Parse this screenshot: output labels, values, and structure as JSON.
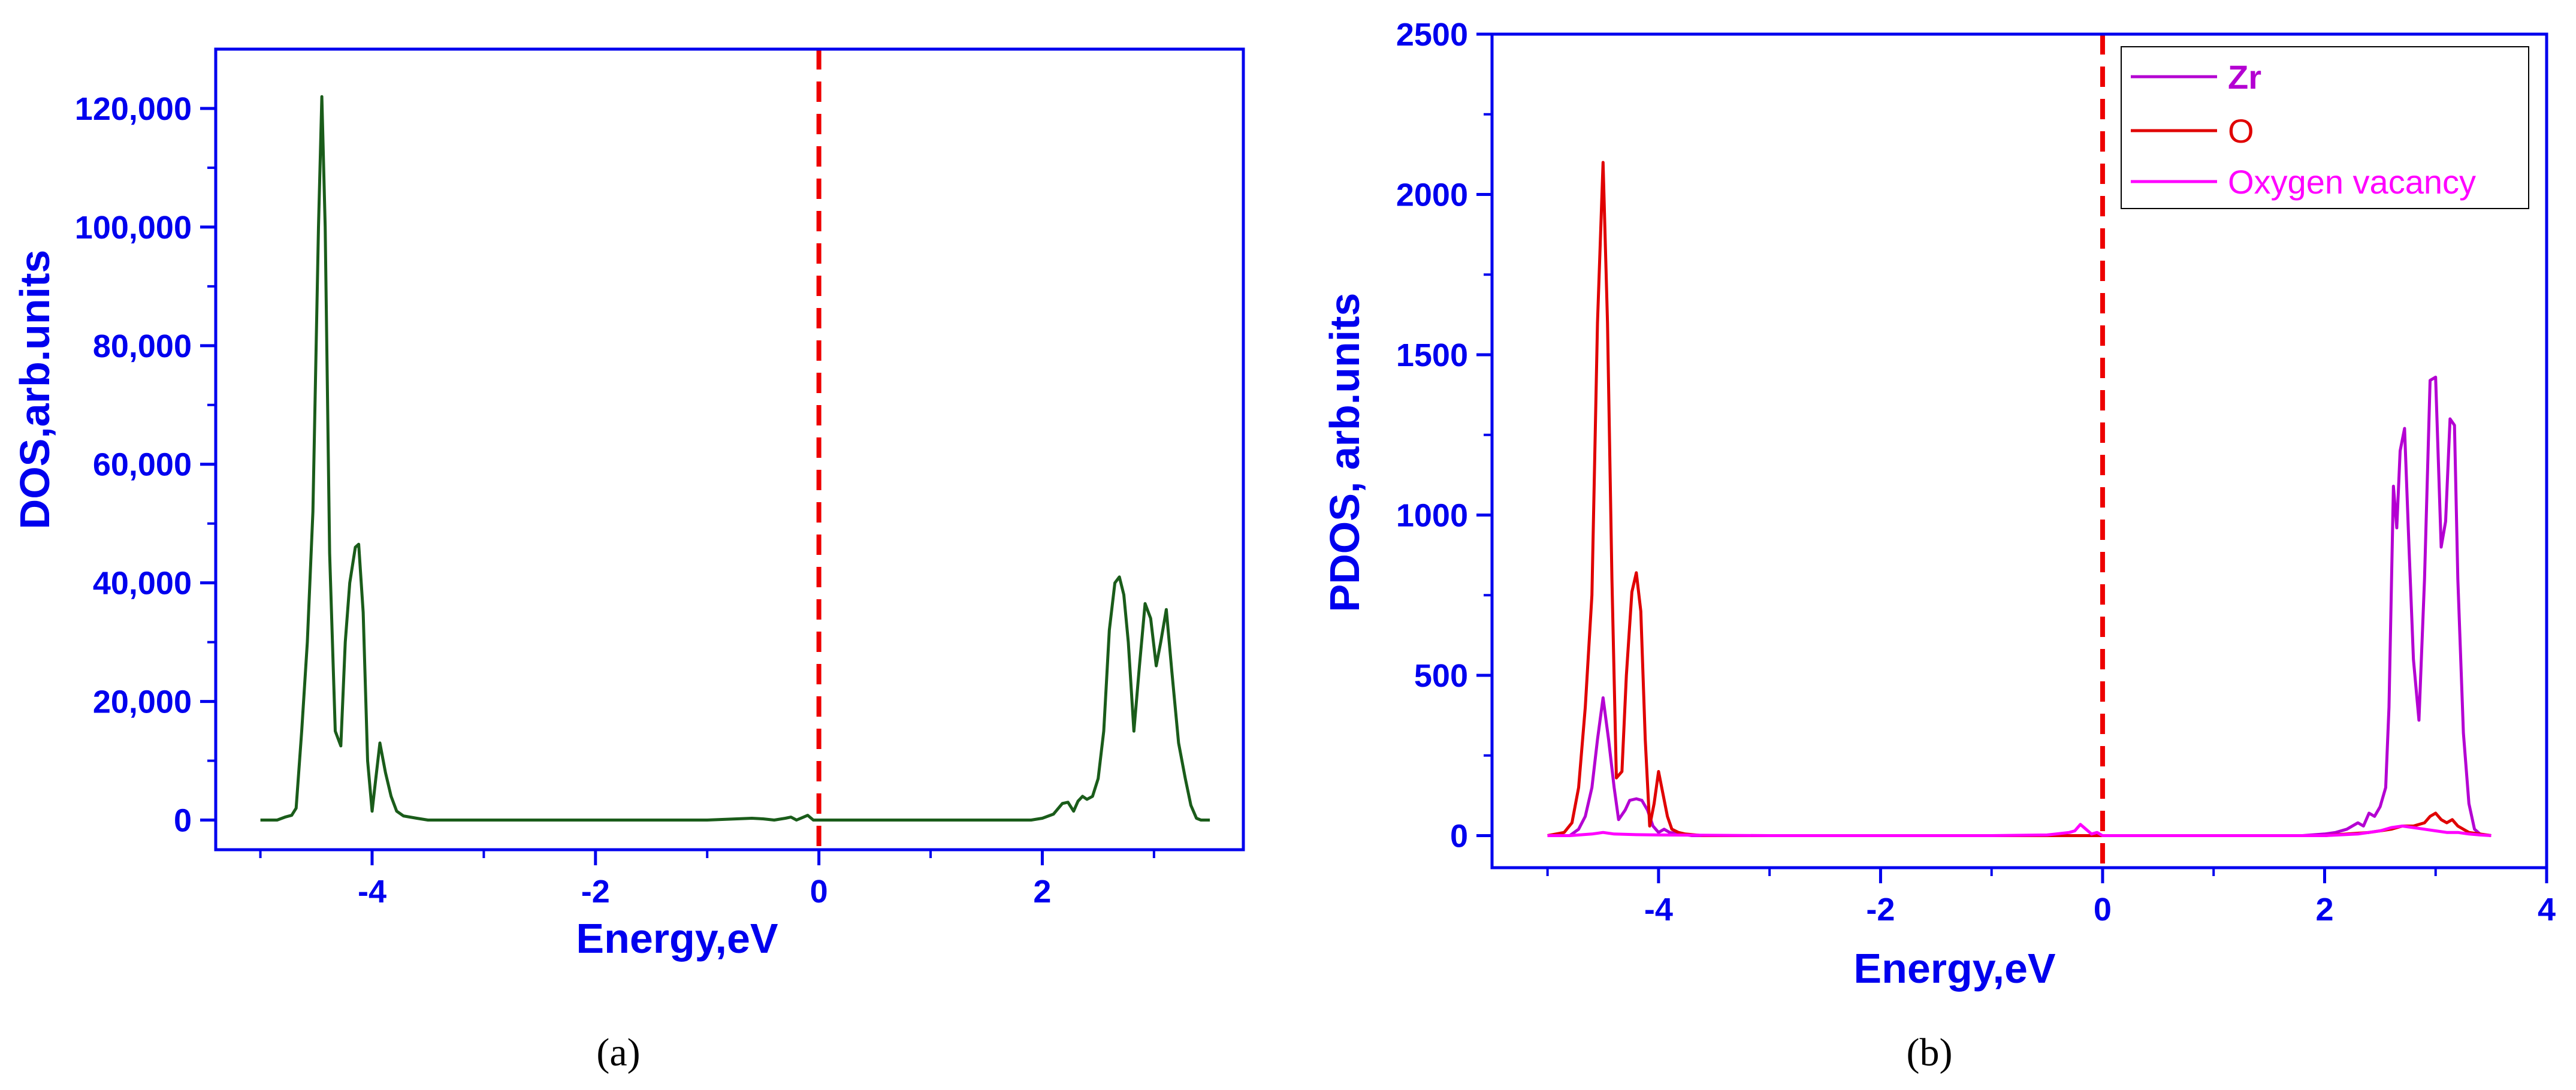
{
  "chart_data": [
    {
      "id": "a",
      "type": "line",
      "xlabel": "Energy,eV",
      "ylabel": "DOS,arb.units",
      "xlim": [
        -5.4,
        3.8
      ],
      "ylim": [
        -5000,
        130000
      ],
      "x_ticks": [
        -4,
        -2,
        0,
        2
      ],
      "x_tick_labels": [
        "-4",
        "-2",
        "0",
        "2"
      ],
      "y_ticks": [
        0,
        20000,
        40000,
        60000,
        80000,
        100000,
        120000
      ],
      "y_tick_labels": [
        "0",
        "20,000",
        "40,000",
        "60,000",
        "80,000",
        "100,000",
        "120,000"
      ],
      "fermi_level": 0,
      "grid": false,
      "series": [
        {
          "color": "#1a5c1a",
          "x": [
            -5.0,
            -4.85,
            -4.78,
            -4.72,
            -4.68,
            -4.63,
            -4.58,
            -4.53,
            -4.48,
            -4.45,
            -4.42,
            -4.38,
            -4.33,
            -4.28,
            -4.24,
            -4.2,
            -4.15,
            -4.12,
            -4.08,
            -4.04,
            -4.0,
            -3.97,
            -3.93,
            -3.88,
            -3.83,
            -3.78,
            -3.72,
            -3.6,
            -3.5,
            -3.4,
            -3.0,
            -2.0,
            -1.0,
            -0.6,
            -0.5,
            -0.4,
            -0.3,
            -0.25,
            -0.2,
            -0.15,
            -0.1,
            -0.05,
            0.0,
            0.5,
            1.0,
            1.5,
            1.9,
            2.0,
            2.1,
            2.18,
            2.23,
            2.28,
            2.32,
            2.36,
            2.4,
            2.45,
            2.5,
            2.55,
            2.6,
            2.65,
            2.69,
            2.73,
            2.77,
            2.82,
            2.87,
            2.92,
            2.97,
            3.02,
            3.06,
            3.11,
            3.16,
            3.22,
            3.28,
            3.33,
            3.38,
            3.42,
            3.5
          ],
          "y": [
            0,
            0,
            500,
            800,
            2000,
            15000,
            30000,
            52000,
            100000,
            122000,
            100000,
            45000,
            15000,
            12500,
            30000,
            40000,
            46000,
            46500,
            35000,
            10000,
            1500,
            6500,
            13000,
            8000,
            4000,
            1500,
            700,
            300,
            0,
            0,
            0,
            0,
            0,
            300,
            200,
            0,
            300,
            500,
            0,
            400,
            800,
            0,
            0,
            0,
            0,
            0,
            0,
            300,
            1000,
            2800,
            3000,
            1500,
            3200,
            4000,
            3500,
            4000,
            7000,
            15000,
            32000,
            40000,
            41000,
            38000,
            30000,
            15000,
            26000,
            36500,
            34000,
            26000,
            30000,
            35500,
            25000,
            13000,
            7000,
            2500,
            300,
            0,
            0
          ]
        }
      ]
    },
    {
      "id": "b",
      "type": "line",
      "xlabel": "Energy,eV",
      "ylabel": "PDOS, arb.units",
      "xlim": [
        -5.5,
        4.0
      ],
      "ylim": [
        -100,
        2500
      ],
      "x_ticks": [
        -4,
        -2,
        0,
        2,
        4
      ],
      "x_tick_labels": [
        "-4",
        "-2",
        "0",
        "2",
        "4"
      ],
      "y_ticks": [
        0,
        500,
        1000,
        1500,
        2000,
        2500
      ],
      "y_tick_labels": [
        "0",
        "500",
        "1000",
        "1500",
        "2000",
        "2500"
      ],
      "fermi_level": 0,
      "grid": false,
      "legend_position": "top-right",
      "series": [
        {
          "name": "Zr",
          "color": "#b400d2",
          "x": [
            -5.0,
            -4.8,
            -4.72,
            -4.66,
            -4.6,
            -4.55,
            -4.5,
            -4.45,
            -4.4,
            -4.36,
            -4.3,
            -4.26,
            -4.2,
            -4.15,
            -4.1,
            -4.05,
            -4.0,
            -3.95,
            -3.9,
            -3.8,
            -3.7,
            -3.5,
            -3.0,
            -2.0,
            -1.0,
            0.0,
            1.0,
            1.8,
            2.0,
            2.1,
            2.2,
            2.3,
            2.35,
            2.4,
            2.45,
            2.5,
            2.55,
            2.58,
            2.62,
            2.65,
            2.68,
            2.72,
            2.76,
            2.8,
            2.85,
            2.9,
            2.95,
            3.0,
            3.05,
            3.09,
            3.13,
            3.17,
            3.2,
            3.25,
            3.3,
            3.35,
            3.4,
            3.5
          ],
          "y": [
            0,
            0,
            20,
            60,
            150,
            300,
            430,
            300,
            150,
            50,
            80,
            110,
            115,
            110,
            80,
            30,
            10,
            20,
            10,
            5,
            0,
            0,
            0,
            0,
            0,
            0,
            0,
            0,
            5,
            10,
            20,
            40,
            30,
            70,
            60,
            90,
            150,
            400,
            1090,
            960,
            1200,
            1270,
            900,
            550,
            360,
            800,
            1420,
            1430,
            900,
            980,
            1300,
            1280,
            800,
            320,
            100,
            20,
            5,
            0
          ]
        },
        {
          "name": "O",
          "color": "#e00000",
          "x": [
            -5.0,
            -4.85,
            -4.78,
            -4.72,
            -4.66,
            -4.6,
            -4.55,
            -4.5,
            -4.46,
            -4.42,
            -4.38,
            -4.33,
            -4.29,
            -4.24,
            -4.2,
            -4.16,
            -4.12,
            -4.08,
            -4.04,
            -4.0,
            -3.96,
            -3.92,
            -3.88,
            -3.82,
            -3.76,
            -3.6,
            -3.5,
            -3.0,
            -2.0,
            -1.0,
            -0.5,
            -0.3,
            -0.1,
            0.0,
            1.0,
            2.0,
            2.2,
            2.4,
            2.5,
            2.6,
            2.7,
            2.8,
            2.9,
            2.95,
            3.0,
            3.05,
            3.1,
            3.15,
            3.2,
            3.3,
            3.4,
            3.5
          ],
          "y": [
            0,
            10,
            40,
            150,
            400,
            750,
            1600,
            2100,
            1600,
            800,
            180,
            200,
            500,
            760,
            820,
            700,
            300,
            30,
            100,
            200,
            130,
            60,
            20,
            10,
            5,
            0,
            0,
            0,
            0,
            0,
            0,
            0,
            0,
            0,
            0,
            0,
            5,
            10,
            15,
            20,
            30,
            30,
            40,
            60,
            70,
            50,
            40,
            50,
            30,
            10,
            5,
            0
          ]
        },
        {
          "name": "Oxygen vacancy",
          "color": "#ff00ff",
          "x": [
            -5.0,
            -4.8,
            -4.6,
            -4.5,
            -4.4,
            -4.2,
            -4.0,
            -3.0,
            -2.0,
            -1.0,
            -0.5,
            -0.3,
            -0.25,
            -0.2,
            -0.15,
            -0.1,
            -0.05,
            0.0,
            0.5,
            1.0,
            2.0,
            2.3,
            2.5,
            2.6,
            2.7,
            2.8,
            2.9,
            3.0,
            3.1,
            3.2,
            3.3,
            3.4,
            3.5
          ],
          "y": [
            0,
            0,
            5,
            10,
            5,
            3,
            2,
            0,
            0,
            0,
            2,
            10,
            15,
            35,
            20,
            5,
            10,
            0,
            0,
            0,
            0,
            5,
            15,
            25,
            30,
            25,
            20,
            15,
            10,
            10,
            5,
            2,
            0
          ]
        }
      ]
    }
  ],
  "captions": {
    "a": "(a)",
    "b": "(b)"
  }
}
